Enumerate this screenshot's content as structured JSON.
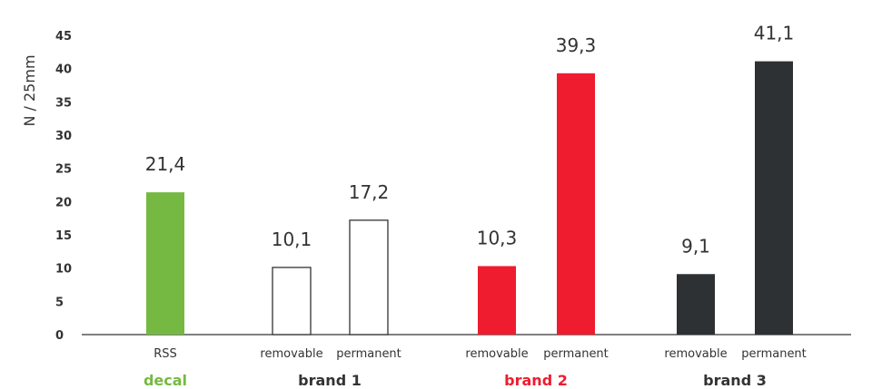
{
  "chart_data": {
    "type": "bar",
    "ylabel": "N / 25mm",
    "ylim": [
      0,
      45
    ],
    "yticks": [
      0,
      5,
      10,
      15,
      20,
      25,
      30,
      35,
      40,
      45
    ],
    "grid": false,
    "bars": [
      {
        "category": "RSS",
        "group": "decal",
        "value": 21.4,
        "value_label": "21,4",
        "fill": "#76b942",
        "stroke": "none"
      },
      {
        "category": "removable",
        "group": "brand 1",
        "value": 10.1,
        "value_label": "10,1",
        "fill": "#ffffff",
        "stroke": "#333333"
      },
      {
        "category": "permanent",
        "group": "brand 1",
        "value": 17.2,
        "value_label": "17,2",
        "fill": "#ffffff",
        "stroke": "#333333"
      },
      {
        "category": "removable",
        "group": "brand 2",
        "value": 10.3,
        "value_label": "10,3",
        "fill": "#ee1c2e",
        "stroke": "none"
      },
      {
        "category": "permanent",
        "group": "brand 2",
        "value": 39.3,
        "value_label": "39,3",
        "fill": "#ee1c2e",
        "stroke": "none"
      },
      {
        "category": "removable",
        "group": "brand 3",
        "value": 9.1,
        "value_label": "9,1",
        "fill": "#2e3133",
        "stroke": "none"
      },
      {
        "category": "permanent",
        "group": "brand 3",
        "value": 41.1,
        "value_label": "41,1",
        "fill": "#2e3133",
        "stroke": "none"
      }
    ],
    "groups": [
      {
        "name": "decal",
        "color": "#76b942"
      },
      {
        "name": "brand 1",
        "color": "#333333"
      },
      {
        "name": "brand 2",
        "color": "#ee1c2e"
      },
      {
        "name": "brand 3",
        "color": "#333333"
      }
    ]
  }
}
